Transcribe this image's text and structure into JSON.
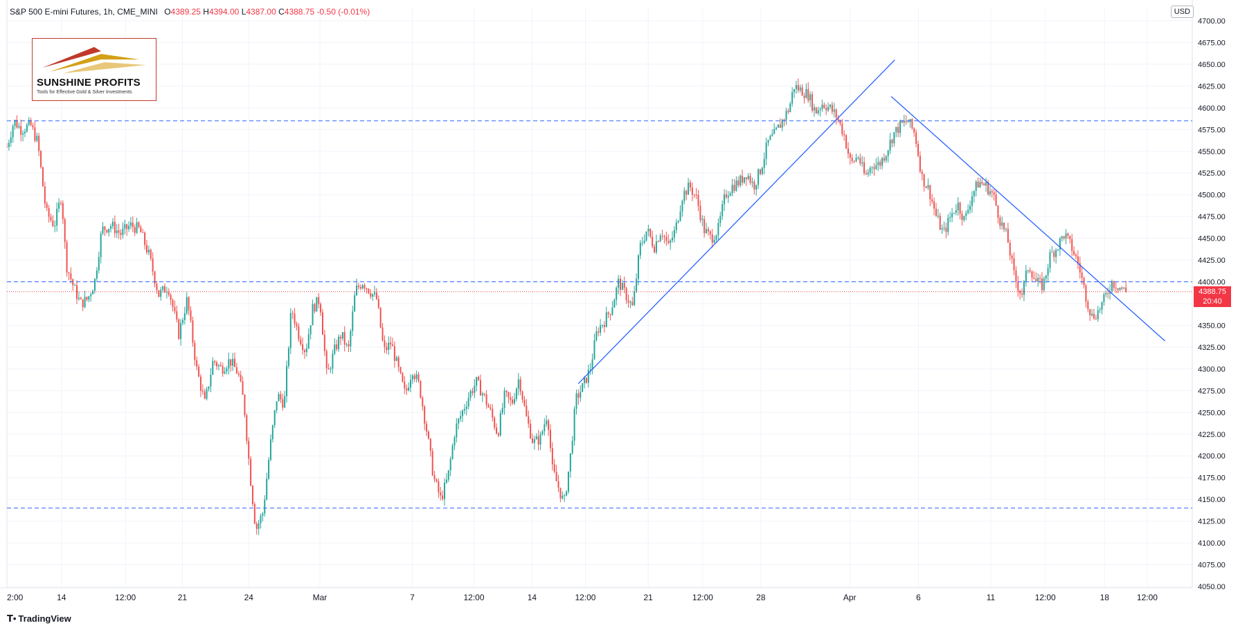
{
  "header": {
    "symbol": "S&P 500 E-mini Futures, 1h, CME_MINI",
    "o_label": "O",
    "o": "4389.25",
    "h_label": "H",
    "h": "4394.00",
    "l_label": "L",
    "l": "4387.00",
    "c_label": "C",
    "c": "4388.75",
    "change": "-0.50 (-0.01%)"
  },
  "currency": "USD",
  "logo": {
    "name": "SUNSHINE PROFITS",
    "tagline": "Tools for Effective Gold & Silver Investments"
  },
  "watermark": "TradingView",
  "last_price": {
    "price": "4388.75",
    "countdown": "20:40",
    "value": 4388.75
  },
  "colors": {
    "up": "#26a69a",
    "down": "#ef5350",
    "line": "#2962ff",
    "grid": "#f0f3fa",
    "last": "#f23645"
  },
  "chart_data": {
    "type": "candlestick",
    "ylim": [
      4050,
      4700
    ],
    "y_ticks": [
      "4050.00",
      "4075.00",
      "4100.00",
      "4125.00",
      "4150.00",
      "4175.00",
      "4200.00",
      "4225.00",
      "4250.00",
      "4275.00",
      "4300.00",
      "4325.00",
      "4350.00",
      "4375.00",
      "4400.00",
      "4425.00",
      "4450.00",
      "4475.00",
      "4500.00",
      "4525.00",
      "4550.00",
      "4575.00",
      "4600.00",
      "4625.00",
      "4650.00",
      "4675.00",
      "4700.00"
    ],
    "x_ticks": [
      "2:00",
      "14",
      "12:00",
      "21",
      "24",
      "Mar",
      "7",
      "12:00",
      "14",
      "12:00",
      "21",
      "12:00",
      "28",
      "Apr",
      "6",
      "11",
      "12:00",
      "18",
      "12:00"
    ],
    "x_tick_pos": [
      0.0,
      0.046,
      0.1,
      0.148,
      0.204,
      0.264,
      0.342,
      0.394,
      0.443,
      0.488,
      0.541,
      0.587,
      0.636,
      0.711,
      0.769,
      0.83,
      0.876,
      0.926,
      0.962
    ],
    "x_range_index": [
      0,
      1
    ],
    "price_path": [
      [
        0.0,
        4555
      ],
      [
        0.006,
        4585
      ],
      [
        0.012,
        4575
      ],
      [
        0.02,
        4580
      ],
      [
        0.026,
        4560
      ],
      [
        0.033,
        4480
      ],
      [
        0.04,
        4465
      ],
      [
        0.046,
        4500
      ],
      [
        0.05,
        4420
      ],
      [
        0.056,
        4395
      ],
      [
        0.062,
        4375
      ],
      [
        0.068,
        4380
      ],
      [
        0.074,
        4400
      ],
      [
        0.08,
        4460
      ],
      [
        0.088,
        4465
      ],
      [
        0.096,
        4455
      ],
      [
        0.104,
        4465
      ],
      [
        0.112,
        4460
      ],
      [
        0.12,
        4430
      ],
      [
        0.128,
        4385
      ],
      [
        0.136,
        4395
      ],
      [
        0.145,
        4340
      ],
      [
        0.152,
        4380
      ],
      [
        0.16,
        4300
      ],
      [
        0.167,
        4260
      ],
      [
        0.174,
        4310
      ],
      [
        0.181,
        4300
      ],
      [
        0.188,
        4310
      ],
      [
        0.195,
        4295
      ],
      [
        0.2,
        4260
      ],
      [
        0.205,
        4180
      ],
      [
        0.21,
        4115
      ],
      [
        0.216,
        4135
      ],
      [
        0.222,
        4210
      ],
      [
        0.228,
        4270
      ],
      [
        0.234,
        4260
      ],
      [
        0.24,
        4370
      ],
      [
        0.246,
        4340
      ],
      [
        0.252,
        4320
      ],
      [
        0.258,
        4370
      ],
      [
        0.264,
        4380
      ],
      [
        0.27,
        4290
      ],
      [
        0.276,
        4320
      ],
      [
        0.282,
        4340
      ],
      [
        0.288,
        4320
      ],
      [
        0.294,
        4390
      ],
      [
        0.3,
        4400
      ],
      [
        0.306,
        4390
      ],
      [
        0.312,
        4380
      ],
      [
        0.318,
        4320
      ],
      [
        0.324,
        4330
      ],
      [
        0.33,
        4300
      ],
      [
        0.336,
        4270
      ],
      [
        0.342,
        4300
      ],
      [
        0.348,
        4280
      ],
      [
        0.354,
        4230
      ],
      [
        0.36,
        4175
      ],
      [
        0.366,
        4150
      ],
      [
        0.372,
        4175
      ],
      [
        0.378,
        4230
      ],
      [
        0.384,
        4250
      ],
      [
        0.39,
        4270
      ],
      [
        0.396,
        4285
      ],
      [
        0.402,
        4270
      ],
      [
        0.408,
        4250
      ],
      [
        0.414,
        4225
      ],
      [
        0.42,
        4270
      ],
      [
        0.426,
        4260
      ],
      [
        0.432,
        4290
      ],
      [
        0.438,
        4245
      ],
      [
        0.444,
        4215
      ],
      [
        0.45,
        4220
      ],
      [
        0.456,
        4250
      ],
      [
        0.46,
        4185
      ],
      [
        0.465,
        4165
      ],
      [
        0.47,
        4145
      ],
      [
        0.475,
        4195
      ],
      [
        0.48,
        4265
      ],
      [
        0.486,
        4280
      ],
      [
        0.492,
        4300
      ],
      [
        0.498,
        4345
      ],
      [
        0.504,
        4355
      ],
      [
        0.51,
        4370
      ],
      [
        0.516,
        4400
      ],
      [
        0.522,
        4385
      ],
      [
        0.528,
        4370
      ],
      [
        0.534,
        4440
      ],
      [
        0.54,
        4460
      ],
      [
        0.546,
        4440
      ],
      [
        0.552,
        4460
      ],
      [
        0.558,
        4440
      ],
      [
        0.564,
        4460
      ],
      [
        0.57,
        4500
      ],
      [
        0.576,
        4510
      ],
      [
        0.582,
        4495
      ],
      [
        0.588,
        4460
      ],
      [
        0.594,
        4450
      ],
      [
        0.6,
        4460
      ],
      [
        0.606,
        4500
      ],
      [
        0.612,
        4510
      ],
      [
        0.618,
        4515
      ],
      [
        0.624,
        4525
      ],
      [
        0.63,
        4510
      ],
      [
        0.636,
        4530
      ],
      [
        0.642,
        4560
      ],
      [
        0.648,
        4570
      ],
      [
        0.654,
        4585
      ],
      [
        0.66,
        4600
      ],
      [
        0.664,
        4625
      ],
      [
        0.67,
        4620
      ],
      [
        0.676,
        4615
      ],
      [
        0.682,
        4595
      ],
      [
        0.688,
        4605
      ],
      [
        0.694,
        4600
      ],
      [
        0.7,
        4590
      ],
      [
        0.706,
        4570
      ],
      [
        0.712,
        4535
      ],
      [
        0.718,
        4545
      ],
      [
        0.724,
        4520
      ],
      [
        0.73,
        4535
      ],
      [
        0.736,
        4535
      ],
      [
        0.742,
        4550
      ],
      [
        0.748,
        4570
      ],
      [
        0.754,
        4580
      ],
      [
        0.76,
        4585
      ],
      [
        0.766,
        4570
      ],
      [
        0.772,
        4520
      ],
      [
        0.778,
        4505
      ],
      [
        0.784,
        4475
      ],
      [
        0.79,
        4455
      ],
      [
        0.796,
        4475
      ],
      [
        0.802,
        4490
      ],
      [
        0.808,
        4470
      ],
      [
        0.814,
        4500
      ],
      [
        0.82,
        4515
      ],
      [
        0.826,
        4510
      ],
      [
        0.832,
        4500
      ],
      [
        0.838,
        4470
      ],
      [
        0.844,
        4450
      ],
      [
        0.85,
        4405
      ],
      [
        0.856,
        4385
      ],
      [
        0.862,
        4420
      ],
      [
        0.868,
        4400
      ],
      [
        0.874,
        4395
      ],
      [
        0.88,
        4430
      ],
      [
        0.886,
        4440
      ],
      [
        0.892,
        4455
      ],
      [
        0.898,
        4440
      ],
      [
        0.904,
        4420
      ],
      [
        0.91,
        4385
      ],
      [
        0.915,
        4360
      ],
      [
        0.92,
        4365
      ],
      [
        0.926,
        4380
      ],
      [
        0.932,
        4400
      ],
      [
        0.938,
        4395
      ],
      [
        0.944,
        4388.75
      ]
    ],
    "horizontal_levels": [
      4585,
      4400,
      4140
    ],
    "trendlines": [
      {
        "from": [
          0.482,
          4283
        ],
        "to": [
          0.749,
          4655
        ]
      },
      {
        "from": [
          0.746,
          4613
        ],
        "to": [
          0.977,
          4332
        ]
      }
    ]
  }
}
